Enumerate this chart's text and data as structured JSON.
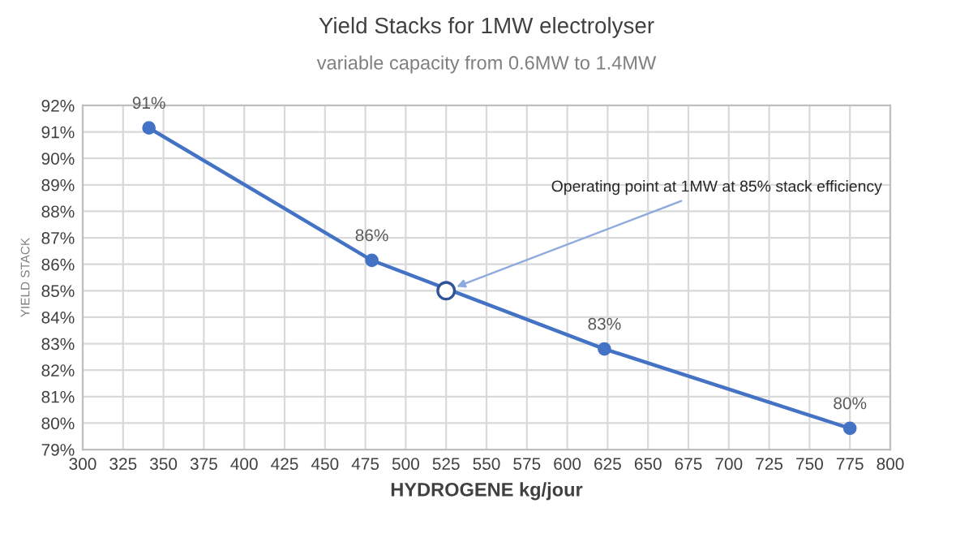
{
  "chart_data": {
    "type": "line",
    "title": "Yield Stacks for 1MW electrolyser",
    "subtitle": "variable capacity from 0.6MW to 1.4MW",
    "xlabel": "HYDROGENE kg/jour",
    "ylabel": "YIELD STACK",
    "series": [
      {
        "color": "#4472c4",
        "x": [
          341,
          479,
          623,
          775
        ],
        "values": [
          91.15,
          86.15,
          82.8,
          79.8
        ],
        "value_labels": [
          "91%",
          "86%",
          "83%",
          "80%"
        ],
        "marker": "circle"
      },
      {
        "type": "scatter",
        "color": "#2f5597",
        "x": [
          525
        ],
        "values": [
          85
        ],
        "marker": "circle"
      }
    ],
    "annotations": [
      {
        "text": "Operating point at 1MW at 85% stack efficiency",
        "x": 525,
        "y": 85
      }
    ],
    "xlim": [
      300,
      800
    ],
    "xticks": [
      300,
      325,
      350,
      375,
      400,
      425,
      450,
      475,
      500,
      525,
      550,
      575,
      600,
      625,
      650,
      675,
      700,
      725,
      750,
      775,
      800
    ],
    "ylim": [
      79,
      92
    ],
    "yticks": [
      {
        "value": 79,
        "label": "79%"
      },
      {
        "value": 80,
        "label": "80%"
      },
      {
        "value": 81,
        "label": "81%"
      },
      {
        "value": 82,
        "label": "82%"
      },
      {
        "value": 83,
        "label": "83%"
      },
      {
        "value": 84,
        "label": "84%"
      },
      {
        "value": 85,
        "label": "85%"
      },
      {
        "value": 86,
        "label": "86%"
      },
      {
        "value": 87,
        "label": "87%"
      },
      {
        "value": 88,
        "label": "88%"
      },
      {
        "value": 89,
        "label": "89%"
      },
      {
        "value": 90,
        "label": "90%"
      },
      {
        "value": 91,
        "label": "91%"
      },
      {
        "value": 92,
        "label": "92%"
      }
    ],
    "grid": true,
    "legend": false
  }
}
